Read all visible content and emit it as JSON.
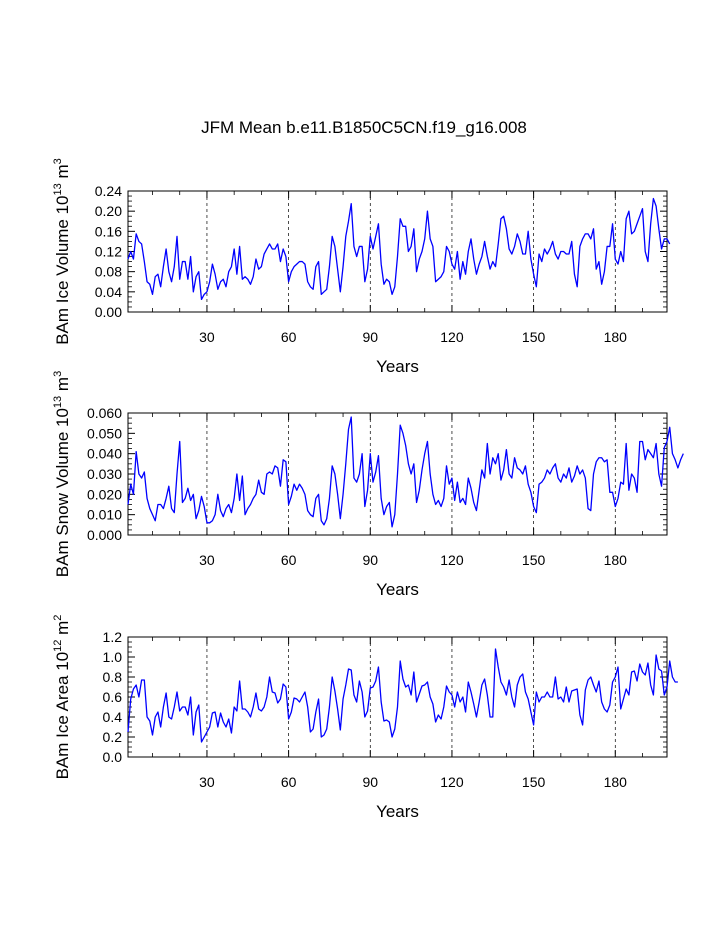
{
  "figure_title": "JFM Mean b.e11.B1850C5CN.f19_g16.008",
  "series_color": "#0000ff",
  "chart_data": [
    {
      "type": "line",
      "ylabel_main": "BAm Ice Volume 10",
      "ylabel_exp": "13",
      "ylabel_unit": " m",
      "ylabel_unit_exp": "3",
      "xlabel": "Years",
      "xlim": [
        1,
        199
      ],
      "ylim": [
        0,
        0.24
      ],
      "yticks": [
        "0.00",
        "0.04",
        "0.08",
        "0.12",
        "0.16",
        "0.20",
        "0.24"
      ],
      "xticks": [
        "30",
        "60",
        "90",
        "120",
        "150",
        "180"
      ],
      "values": [
        0.105,
        0.12,
        0.105,
        0.155,
        0.14,
        0.135,
        0.1,
        0.06,
        0.055,
        0.035,
        0.07,
        0.075,
        0.05,
        0.09,
        0.125,
        0.08,
        0.06,
        0.09,
        0.15,
        0.065,
        0.1,
        0.1,
        0.065,
        0.11,
        0.04,
        0.07,
        0.08,
        0.025,
        0.035,
        0.04,
        0.06,
        0.095,
        0.075,
        0.045,
        0.06,
        0.065,
        0.05,
        0.08,
        0.09,
        0.125,
        0.075,
        0.13,
        0.065,
        0.07,
        0.065,
        0.055,
        0.07,
        0.105,
        0.085,
        0.09,
        0.115,
        0.125,
        0.135,
        0.125,
        0.125,
        0.135,
        0.1,
        0.125,
        0.11,
        0.06,
        0.08,
        0.09,
        0.095,
        0.1,
        0.1,
        0.095,
        0.06,
        0.05,
        0.045,
        0.09,
        0.1,
        0.035,
        0.04,
        0.045,
        0.09,
        0.15,
        0.13,
        0.085,
        0.04,
        0.09,
        0.15,
        0.18,
        0.215,
        0.13,
        0.11,
        0.13,
        0.13,
        0.06,
        0.085,
        0.15,
        0.125,
        0.15,
        0.175,
        0.095,
        0.055,
        0.065,
        0.06,
        0.035,
        0.05,
        0.11,
        0.185,
        0.17,
        0.17,
        0.12,
        0.13,
        0.165,
        0.08,
        0.105,
        0.12,
        0.145,
        0.2,
        0.145,
        0.13,
        0.06,
        0.065,
        0.07,
        0.08,
        0.13,
        0.12,
        0.095,
        0.085,
        0.12,
        0.065,
        0.1,
        0.075,
        0.12,
        0.145,
        0.105,
        0.075,
        0.095,
        0.11,
        0.14,
        0.11,
        0.085,
        0.1,
        0.09,
        0.135,
        0.185,
        0.19,
        0.165,
        0.125,
        0.115,
        0.13,
        0.155,
        0.14,
        0.115,
        0.115,
        0.16,
        0.105,
        0.075,
        0.05,
        0.115,
        0.1,
        0.125,
        0.115,
        0.125,
        0.14,
        0.115,
        0.105,
        0.12,
        0.12,
        0.115,
        0.115,
        0.14,
        0.075,
        0.05,
        0.13,
        0.145,
        0.155,
        0.155,
        0.145,
        0.165,
        0.085,
        0.1,
        0.055,
        0.08,
        0.13,
        0.13,
        0.175,
        0.105,
        0.095,
        0.12,
        0.1,
        0.185,
        0.2,
        0.155,
        0.16,
        0.175,
        0.19,
        0.205,
        0.12,
        0.1,
        0.175,
        0.225,
        0.21,
        0.165,
        0.125,
        0.145,
        0.145,
        0.135
      ]
    },
    {
      "type": "line",
      "ylabel_main": "BAm Snow Volume 10",
      "ylabel_exp": "13",
      "ylabel_unit": " m",
      "ylabel_unit_exp": "3",
      "xlabel": "Years",
      "xlim": [
        1,
        199
      ],
      "ylim": [
        0,
        0.06
      ],
      "yticks": [
        "0.000",
        "0.010",
        "0.020",
        "0.030",
        "0.040",
        "0.050",
        "0.060"
      ],
      "xticks": [
        "30",
        "60",
        "90",
        "120",
        "150",
        "180"
      ],
      "values": [
        0.015,
        0.025,
        0.02,
        0.041,
        0.03,
        0.028,
        0.031,
        0.018,
        0.013,
        0.01,
        0.007,
        0.015,
        0.015,
        0.013,
        0.018,
        0.024,
        0.013,
        0.011,
        0.03,
        0.046,
        0.016,
        0.018,
        0.023,
        0.017,
        0.02,
        0.008,
        0.012,
        0.019,
        0.014,
        0.006,
        0.006,
        0.007,
        0.01,
        0.02,
        0.012,
        0.009,
        0.013,
        0.015,
        0.011,
        0.018,
        0.03,
        0.017,
        0.029,
        0.01,
        0.013,
        0.015,
        0.018,
        0.02,
        0.027,
        0.021,
        0.02,
        0.03,
        0.031,
        0.03,
        0.034,
        0.033,
        0.024,
        0.037,
        0.036,
        0.015,
        0.019,
        0.025,
        0.022,
        0.025,
        0.023,
        0.02,
        0.012,
        0.01,
        0.009,
        0.018,
        0.02,
        0.007,
        0.005,
        0.008,
        0.018,
        0.034,
        0.03,
        0.02,
        0.008,
        0.02,
        0.035,
        0.052,
        0.058,
        0.028,
        0.026,
        0.03,
        0.04,
        0.014,
        0.022,
        0.04,
        0.026,
        0.031,
        0.039,
        0.018,
        0.01,
        0.014,
        0.016,
        0.004,
        0.01,
        0.03,
        0.054,
        0.05,
        0.044,
        0.035,
        0.03,
        0.035,
        0.016,
        0.022,
        0.032,
        0.04,
        0.046,
        0.03,
        0.02,
        0.015,
        0.017,
        0.014,
        0.018,
        0.034,
        0.025,
        0.028,
        0.017,
        0.026,
        0.016,
        0.018,
        0.015,
        0.028,
        0.023,
        0.016,
        0.012,
        0.022,
        0.032,
        0.028,
        0.045,
        0.03,
        0.038,
        0.035,
        0.04,
        0.027,
        0.032,
        0.042,
        0.03,
        0.028,
        0.038,
        0.033,
        0.032,
        0.03,
        0.034,
        0.025,
        0.021,
        0.014,
        0.011,
        0.025,
        0.026,
        0.028,
        0.032,
        0.03,
        0.033,
        0.035,
        0.028,
        0.026,
        0.03,
        0.028,
        0.033,
        0.026,
        0.029,
        0.034,
        0.03,
        0.032,
        0.028,
        0.013,
        0.012,
        0.03,
        0.036,
        0.038,
        0.038,
        0.036,
        0.037,
        0.021,
        0.021,
        0.014,
        0.018,
        0.026,
        0.025,
        0.045,
        0.022,
        0.03,
        0.028,
        0.021,
        0.046,
        0.046,
        0.037,
        0.042,
        0.04,
        0.038,
        0.045,
        0.03,
        0.024,
        0.043,
        0.046,
        0.053,
        0.04,
        0.037,
        0.033,
        0.037,
        0.04
      ]
    },
    {
      "type": "line",
      "ylabel_main": "BAm Ice Area 10",
      "ylabel_exp": "12",
      "ylabel_unit": " m",
      "ylabel_unit_exp": "2",
      "xlabel": "Years",
      "xlim": [
        1,
        199
      ],
      "ylim": [
        0,
        1.2
      ],
      "yticks": [
        "0.0",
        "0.2",
        "0.4",
        "0.6",
        "0.8",
        "1.0",
        "1.2"
      ],
      "xticks": [
        "30",
        "60",
        "90",
        "120",
        "150",
        "180"
      ],
      "values": [
        0.25,
        0.58,
        0.68,
        0.72,
        0.6,
        0.77,
        0.77,
        0.4,
        0.36,
        0.22,
        0.4,
        0.45,
        0.3,
        0.5,
        0.64,
        0.4,
        0.38,
        0.5,
        0.65,
        0.46,
        0.5,
        0.5,
        0.42,
        0.6,
        0.22,
        0.45,
        0.52,
        0.15,
        0.2,
        0.25,
        0.3,
        0.44,
        0.45,
        0.3,
        0.44,
        0.35,
        0.3,
        0.38,
        0.24,
        0.5,
        0.46,
        0.76,
        0.48,
        0.48,
        0.45,
        0.4,
        0.5,
        0.64,
        0.48,
        0.46,
        0.5,
        0.6,
        0.8,
        0.65,
        0.64,
        0.54,
        0.58,
        0.73,
        0.7,
        0.38,
        0.45,
        0.59,
        0.58,
        0.55,
        0.6,
        0.65,
        0.5,
        0.25,
        0.28,
        0.45,
        0.58,
        0.2,
        0.22,
        0.28,
        0.5,
        0.8,
        0.66,
        0.48,
        0.27,
        0.58,
        0.72,
        0.88,
        0.87,
        0.62,
        0.55,
        0.76,
        0.65,
        0.4,
        0.46,
        0.69,
        0.7,
        0.76,
        0.9,
        0.55,
        0.36,
        0.37,
        0.35,
        0.2,
        0.28,
        0.5,
        0.96,
        0.78,
        0.7,
        0.72,
        0.62,
        0.85,
        0.55,
        0.63,
        0.71,
        0.72,
        0.75,
        0.6,
        0.53,
        0.35,
        0.42,
        0.38,
        0.5,
        0.71,
        0.65,
        0.62,
        0.5,
        0.65,
        0.55,
        0.6,
        0.45,
        0.75,
        0.65,
        0.53,
        0.4,
        0.55,
        0.72,
        0.78,
        0.62,
        0.4,
        0.4,
        1.08,
        0.9,
        0.75,
        0.7,
        0.62,
        0.77,
        0.6,
        0.5,
        0.72,
        0.8,
        0.83,
        0.65,
        0.58,
        0.45,
        0.32,
        0.65,
        0.55,
        0.6,
        0.6,
        0.65,
        0.6,
        0.6,
        0.8,
        0.58,
        0.6,
        0.55,
        0.7,
        0.55,
        0.66,
        0.67,
        0.68,
        0.42,
        0.32,
        0.67,
        0.77,
        0.8,
        0.72,
        0.65,
        0.76,
        0.55,
        0.48,
        0.45,
        0.52,
        0.75,
        0.8,
        0.9,
        0.48,
        0.58,
        0.68,
        0.62,
        0.85,
        0.86,
        0.76,
        0.93,
        0.85,
        0.82,
        0.94,
        0.72,
        0.62,
        1.02,
        0.88,
        0.86,
        0.62,
        0.7,
        0.96,
        0.8,
        0.75,
        0.75
      ]
    }
  ]
}
